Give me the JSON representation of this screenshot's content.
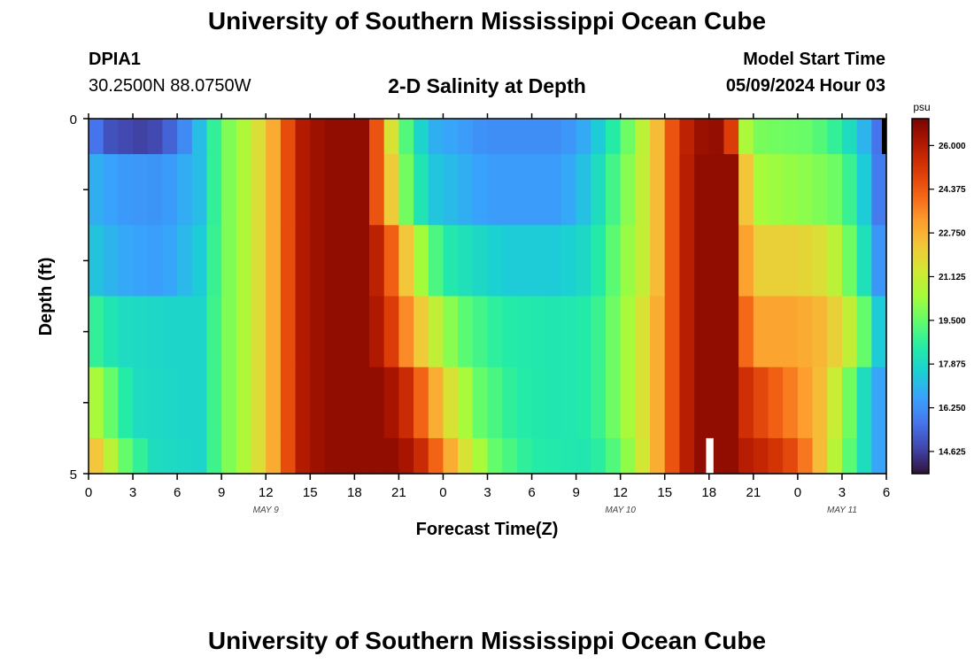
{
  "header": {
    "title": "University of Southern Mississippi Ocean Cube",
    "station_id": "DPIA1",
    "coordinates": "30.2500N  88.0750W",
    "chart_title": "2-D Salinity at Depth",
    "model_start_label": "Model Start Time",
    "model_start_value": "05/09/2024 Hour 03"
  },
  "footer": {
    "title": "University of Southern Mississippi Ocean Cube"
  },
  "colors": {
    "ramp": [
      "#30123b",
      "#4145ab",
      "#4675ed",
      "#39a2fc",
      "#1bcfd4",
      "#24eca6",
      "#61fc6c",
      "#a4fc3b",
      "#d1e834",
      "#f3c63a",
      "#fe9b2d",
      "#f36315",
      "#d93806",
      "#b11901",
      "#7a0402"
    ],
    "gap": "#ffffff",
    "nodata": "#000000"
  },
  "chart_data": {
    "type": "heatmap",
    "title": "2-D Salinity at Depth",
    "xlabel": "Forecast Time(Z)",
    "ylabel": "Depth (ft)",
    "x_tick_labels": [
      "0",
      "3",
      "6",
      "9",
      "12",
      "15",
      "18",
      "21",
      "0",
      "3",
      "6",
      "9",
      "12",
      "15",
      "18",
      "21",
      "0",
      "3",
      "6"
    ],
    "x_tick_hours": [
      0,
      3,
      6,
      9,
      12,
      15,
      18,
      21,
      24,
      27,
      30,
      33,
      36,
      39,
      42,
      45,
      48,
      51,
      54
    ],
    "date_labels": [
      {
        "label": "MAY 9",
        "hour": 12
      },
      {
        "label": "MAY 10",
        "hour": 36
      },
      {
        "label": "MAY 11",
        "hour": 51
      }
    ],
    "xlim": [
      0,
      54
    ],
    "y_tick_labels": [
      "0",
      "5"
    ],
    "ylim": [
      0,
      5
    ],
    "y_inverted": true,
    "colorbar": {
      "unit": "psu",
      "min": 13.8,
      "max": 27.0,
      "ticks": [
        "26.000",
        "24.375",
        "22.750",
        "21.125",
        "19.500",
        "17.875",
        "16.250",
        "14.625"
      ],
      "tick_values": [
        26.0,
        24.375,
        22.75,
        21.125,
        19.5,
        17.875,
        16.25,
        14.625
      ]
    },
    "layers": [
      {
        "depth": "0-0.5",
        "keys": [
          [
            0,
            16.0
          ],
          [
            1.5,
            15.0
          ],
          [
            4,
            14.6
          ],
          [
            6,
            15.6
          ],
          [
            7.5,
            17.2
          ],
          [
            9,
            19.5
          ],
          [
            11,
            21.0
          ],
          [
            13,
            23.5
          ],
          [
            14,
            25.8
          ],
          [
            16,
            26.6
          ],
          [
            18.5,
            26.6
          ],
          [
            19.5,
            24.5
          ],
          [
            20.3,
            22.0
          ],
          [
            21.3,
            19.5
          ],
          [
            23,
            17.0
          ],
          [
            27,
            16.2
          ],
          [
            32,
            16.2
          ],
          [
            34,
            17.0
          ],
          [
            36,
            19.0
          ],
          [
            38,
            21.5
          ],
          [
            39.5,
            24.5
          ],
          [
            41,
            26.4
          ],
          [
            43,
            26.6
          ],
          [
            43.5,
            25.0
          ],
          [
            44.2,
            21.0
          ],
          [
            45,
            19.8
          ],
          [
            49,
            19.5
          ],
          [
            51,
            18.5
          ],
          [
            52.5,
            17.0
          ],
          [
            54,
            15.0
          ]
        ],
        "nodata": [
          [
            53.7,
            54
          ]
        ]
      },
      {
        "depth": "0.5-1.5",
        "keys": [
          [
            0,
            17.0
          ],
          [
            2,
            16.5
          ],
          [
            5,
            16.3
          ],
          [
            7.5,
            17.2
          ],
          [
            9,
            19.5
          ],
          [
            11,
            21.0
          ],
          [
            13,
            23.5
          ],
          [
            14,
            25.8
          ],
          [
            16,
            26.6
          ],
          [
            18.5,
            26.6
          ],
          [
            19.5,
            24.5
          ],
          [
            20.2,
            23.0
          ],
          [
            21.3,
            20.0
          ],
          [
            23,
            17.5
          ],
          [
            27,
            16.5
          ],
          [
            32,
            16.5
          ],
          [
            34,
            17.5
          ],
          [
            36,
            19.5
          ],
          [
            38,
            21.5
          ],
          [
            39.5,
            24.5
          ],
          [
            41,
            26.6
          ],
          [
            43.5,
            26.6
          ],
          [
            44.3,
            23.0
          ],
          [
            45,
            20.5
          ],
          [
            49,
            20.0
          ],
          [
            51,
            19.5
          ],
          [
            52.5,
            17.5
          ],
          [
            54,
            15.0
          ]
        ]
      },
      {
        "depth": "1.5-2.5",
        "keys": [
          [
            0,
            17.5
          ],
          [
            2,
            16.8
          ],
          [
            5,
            16.5
          ],
          [
            7.5,
            17.5
          ],
          [
            9,
            19.5
          ],
          [
            11,
            21.0
          ],
          [
            13,
            23.5
          ],
          [
            14,
            25.8
          ],
          [
            16,
            26.6
          ],
          [
            19,
            26.6
          ],
          [
            20,
            25.0
          ],
          [
            21,
            23.5
          ],
          [
            22,
            21.0
          ],
          [
            24,
            18.5
          ],
          [
            28,
            17.5
          ],
          [
            32,
            17.5
          ],
          [
            34,
            18.0
          ],
          [
            36,
            19.8
          ],
          [
            38,
            21.5
          ],
          [
            39.5,
            24.5
          ],
          [
            41,
            26.6
          ],
          [
            43.5,
            26.6
          ],
          [
            44.3,
            23.5
          ],
          [
            45,
            22.0
          ],
          [
            48,
            22.0
          ],
          [
            50,
            21.5
          ],
          [
            52,
            19.0
          ],
          [
            54,
            15.5
          ]
        ]
      },
      {
        "depth": "2.5-3.5",
        "keys": [
          [
            0,
            19.0
          ],
          [
            2,
            18.0
          ],
          [
            5,
            17.8
          ],
          [
            7.5,
            17.8
          ],
          [
            9,
            19.5
          ],
          [
            11,
            21.0
          ],
          [
            13,
            23.5
          ],
          [
            14,
            25.8
          ],
          [
            16,
            26.6
          ],
          [
            19,
            26.6
          ],
          [
            20.5,
            25.0
          ],
          [
            21.5,
            23.5
          ],
          [
            23,
            21.5
          ],
          [
            25,
            19.5
          ],
          [
            28,
            18.5
          ],
          [
            32,
            18.3
          ],
          [
            34,
            18.5
          ],
          [
            36,
            20.0
          ],
          [
            38,
            22.0
          ],
          [
            39.5,
            24.5
          ],
          [
            41,
            26.6
          ],
          [
            43.5,
            26.6
          ],
          [
            44.3,
            24.5
          ],
          [
            45,
            23.0
          ],
          [
            48,
            23.0
          ],
          [
            50,
            22.5
          ],
          [
            52,
            20.5
          ],
          [
            54,
            16.5
          ]
        ]
      },
      {
        "depth": "3.5-4.5",
        "keys": [
          [
            0,
            21.0
          ],
          [
            1,
            20.0
          ],
          [
            3,
            18.0
          ],
          [
            6,
            17.8
          ],
          [
            7.5,
            17.8
          ],
          [
            9,
            19.5
          ],
          [
            11,
            21.0
          ],
          [
            13,
            23.5
          ],
          [
            14,
            25.8
          ],
          [
            16,
            26.6
          ],
          [
            20,
            26.6
          ],
          [
            21.5,
            25.5
          ],
          [
            23,
            23.5
          ],
          [
            24.5,
            21.5
          ],
          [
            26.5,
            19.5
          ],
          [
            29,
            18.5
          ],
          [
            32,
            18.3
          ],
          [
            34,
            18.5
          ],
          [
            36,
            20.0
          ],
          [
            38,
            22.0
          ],
          [
            39.5,
            24.5
          ],
          [
            41,
            26.6
          ],
          [
            43.5,
            26.6
          ],
          [
            44.3,
            25.5
          ],
          [
            46,
            24.5
          ],
          [
            48,
            23.5
          ],
          [
            49.5,
            22.5
          ],
          [
            51,
            20.5
          ],
          [
            52.5,
            18.0
          ],
          [
            54,
            16.0
          ]
        ]
      },
      {
        "depth": "4.5-5",
        "keys": [
          [
            0,
            23.0
          ],
          [
            1,
            21.5
          ],
          [
            2.5,
            19.5
          ],
          [
            4.5,
            18.0
          ],
          [
            7.5,
            17.8
          ],
          [
            9,
            19.5
          ],
          [
            11,
            21.0
          ],
          [
            13,
            23.5
          ],
          [
            14,
            25.8
          ],
          [
            16,
            26.6
          ],
          [
            21,
            26.6
          ],
          [
            22.5,
            25.5
          ],
          [
            24,
            23.5
          ],
          [
            25.5,
            21.5
          ],
          [
            27.5,
            19.5
          ],
          [
            30,
            18.5
          ],
          [
            34,
            18.3
          ],
          [
            36,
            19.5
          ],
          [
            38,
            22.0
          ],
          [
            39.5,
            24.5
          ],
          [
            41,
            26.6
          ],
          [
            43.5,
            26.6
          ],
          [
            44.3,
            26.0
          ],
          [
            46,
            25.5
          ],
          [
            48,
            24.5
          ],
          [
            49.5,
            22.5
          ],
          [
            51,
            20.0
          ],
          [
            52.5,
            18.0
          ],
          [
            54,
            16.0
          ]
        ],
        "gap": [
          [
            41.8,
            42.3
          ]
        ]
      }
    ]
  }
}
